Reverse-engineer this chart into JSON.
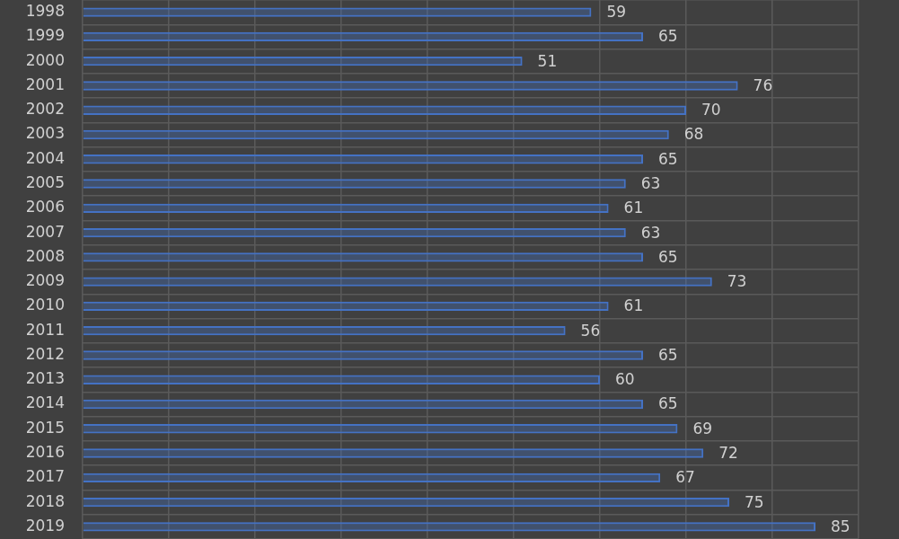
{
  "chart_data": {
    "type": "bar",
    "orientation": "horizontal",
    "categories": [
      "1998",
      "1999",
      "2000",
      "2001",
      "2002",
      "2003",
      "2004",
      "2005",
      "2006",
      "2007",
      "2008",
      "2009",
      "2010",
      "2011",
      "2012",
      "2013",
      "2014",
      "2015",
      "2016",
      "2017",
      "2018",
      "2019"
    ],
    "values": [
      59,
      65,
      51,
      76,
      70,
      68,
      65,
      63,
      61,
      63,
      65,
      73,
      61,
      56,
      65,
      60,
      65,
      69,
      72,
      67,
      75,
      85
    ],
    "color": "#4472c4",
    "xlim": [
      0,
      90
    ],
    "xticks": [
      {
        "value": 0,
        "label": null
      },
      {
        "value": 10,
        "label": null
      },
      {
        "value": 20,
        "label": null
      },
      {
        "value": 30,
        "label": null
      },
      {
        "value": 40,
        "label": null
      },
      {
        "value": 50,
        "label": null
      },
      {
        "value": 60,
        "label": null
      },
      {
        "value": 70,
        "label": null
      },
      {
        "value": 80,
        "label": null
      },
      {
        "value": 90,
        "label": null
      }
    ],
    "grid": true,
    "tick_labels": "y",
    "data_labels": true
  }
}
